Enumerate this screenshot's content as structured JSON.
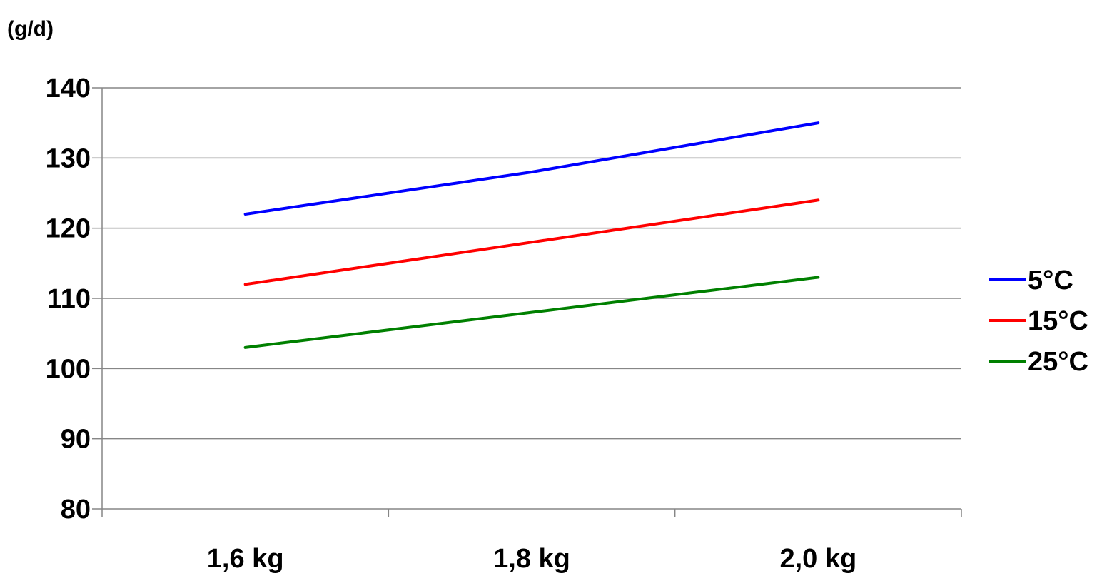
{
  "chart_data": {
    "type": "line",
    "title": "",
    "xlabel": "",
    "ylabel": "(g/d)",
    "categories": [
      "1,6 kg",
      "1,8 kg",
      "2,0 kg"
    ],
    "ylim": [
      80,
      140
    ],
    "yticks": [
      80,
      90,
      100,
      110,
      120,
      130,
      140
    ],
    "grid": true,
    "legend_position": "right",
    "series": [
      {
        "name": "5°C",
        "color": "#0000FF",
        "values": [
          122,
          128,
          135
        ]
      },
      {
        "name": "15°C",
        "color": "#FF0000",
        "values": [
          112,
          118,
          124
        ]
      },
      {
        "name": "25°C",
        "color": "#008000",
        "values": [
          103,
          108,
          113
        ]
      }
    ]
  }
}
